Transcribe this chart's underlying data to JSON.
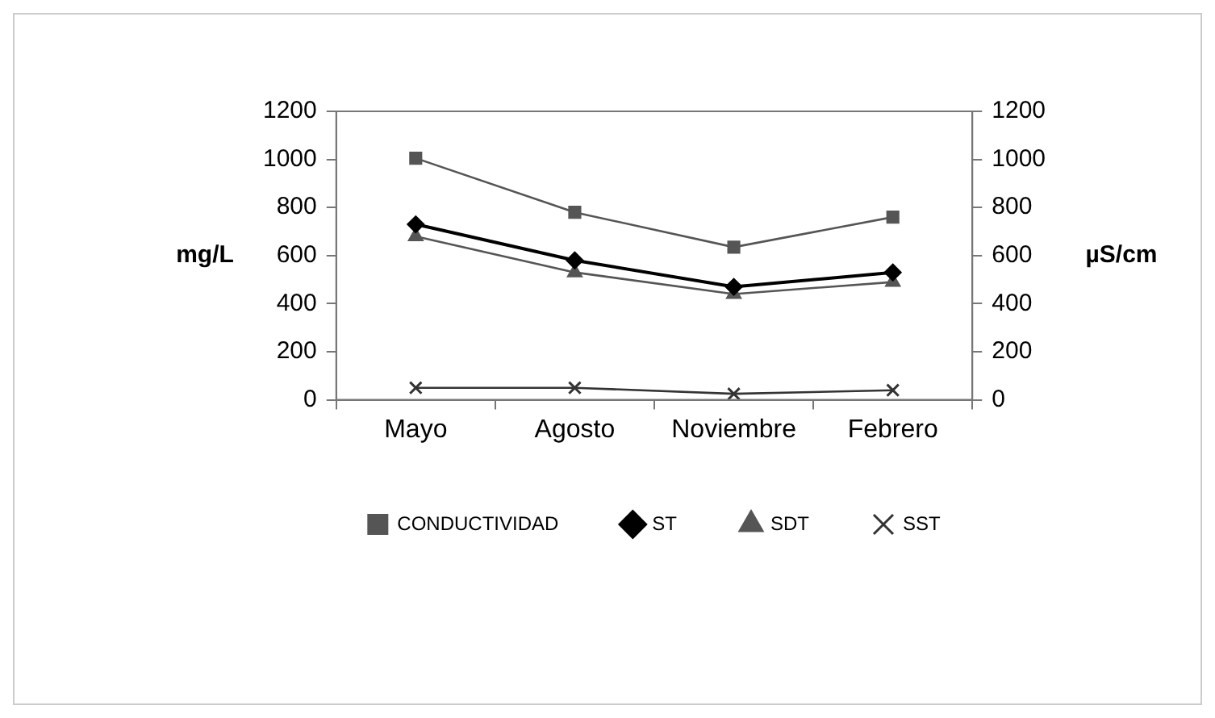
{
  "chart_data": {
    "type": "line",
    "ylabel": "mg/L",
    "y2label": "µS/cm",
    "categories": [
      "Mayo",
      "Agosto",
      "Noviembre",
      "Febrero"
    ],
    "series": [
      {
        "name": "CONDUCTIVIDAD",
        "color": "#555555",
        "marker": "square",
        "axis": "y2",
        "values": [
          1005,
          780,
          635,
          760
        ]
      },
      {
        "name": "ST",
        "color": "#000000",
        "marker": "diamond",
        "values": [
          730,
          580,
          470,
          530
        ]
      },
      {
        "name": "SDT",
        "color": "#555555",
        "marker": "triangle",
        "values": [
          680,
          530,
          440,
          490
        ]
      },
      {
        "name": "SST",
        "color": "#333333",
        "marker": "cross",
        "values": [
          50,
          50,
          25,
          40
        ]
      }
    ],
    "ylim": [
      0,
      1200
    ],
    "yticks": [
      0,
      200,
      400,
      600,
      800,
      1000,
      1200
    ],
    "y2lim": [
      0,
      1200
    ],
    "y2ticks": [
      0,
      200,
      400,
      600,
      800,
      1000,
      1200
    ],
    "grid": false,
    "legend": "bottom",
    "line_style": "solid"
  }
}
